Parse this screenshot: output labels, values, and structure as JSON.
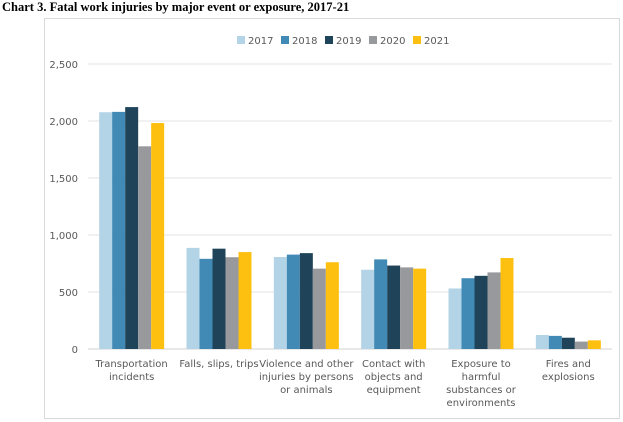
{
  "chart_data": {
    "type": "bar",
    "title": "Chart 3. Fatal work injuries by major event or exposure, 2017-21",
    "xlabel": "",
    "ylabel": "",
    "ylim": [
      0,
      2500
    ],
    "yticks": [
      "0",
      "500",
      "1,000",
      "1,500",
      "2,000",
      "2,500"
    ],
    "grid": true,
    "legend": "top",
    "categories": [
      [
        "Transportation",
        "incidents"
      ],
      [
        "Falls, slips, trips"
      ],
      [
        "Violence and other",
        "injuries by persons",
        "or animals"
      ],
      [
        "Contact with",
        "objects and",
        "equipment"
      ],
      [
        "Exposure to",
        "harmful",
        "substances or",
        "environments"
      ],
      [
        "Fires and",
        "explosions"
      ]
    ],
    "series": [
      {
        "name": "2017",
        "color": "#b3d3e6",
        "values": [
          2077,
          887,
          807,
          695,
          531,
          123
        ]
      },
      {
        "name": "2018",
        "color": "#418ab5",
        "values": [
          2080,
          791,
          828,
          786,
          621,
          115
        ]
      },
      {
        "name": "2019",
        "color": "#1f4459",
        "values": [
          2122,
          880,
          841,
          732,
          642,
          99
        ]
      },
      {
        "name": "2020",
        "color": "#98999c",
        "values": [
          1778,
          805,
          705,
          716,
          672,
          65
        ]
      },
      {
        "name": "2021",
        "color": "#fdc010",
        "values": [
          1982,
          850,
          761,
          705,
          798,
          76
        ]
      }
    ]
  }
}
